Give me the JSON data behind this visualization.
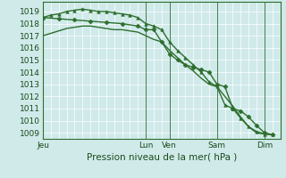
{
  "xlabel": "Pression niveau de la mer( hPa )",
  "bg_color": "#d0eaea",
  "grid_color": "#b8dada",
  "line_color": "#2d6e2d",
  "marker_color": "#2d6e2d",
  "ylim": [
    1008.5,
    1019.8
  ],
  "yticks": [
    1009,
    1010,
    1011,
    1012,
    1013,
    1014,
    1015,
    1016,
    1017,
    1018,
    1019
  ],
  "day_labels": [
    "Jeu",
    "Lun",
    "Ven",
    "Sam",
    "Dim"
  ],
  "day_positions": [
    0,
    13,
    16,
    22,
    28
  ],
  "xlim": [
    0,
    30
  ],
  "series": [
    {
      "x": [
        0,
        1,
        2,
        3,
        4,
        5,
        6,
        7,
        8,
        9,
        10,
        11,
        12,
        13,
        14,
        15,
        16,
        17,
        18,
        19,
        20,
        21,
        22,
        23,
        24,
        25,
        26,
        27,
        28,
        29
      ],
      "y": [
        1017.0,
        1017.2,
        1017.4,
        1017.6,
        1017.7,
        1017.8,
        1017.8,
        1017.7,
        1017.6,
        1017.5,
        1017.5,
        1017.4,
        1017.3,
        1017.0,
        1016.7,
        1016.5,
        1015.8,
        1015.2,
        1014.6,
        1014.1,
        1013.5,
        1013.0,
        1012.8,
        1012.0,
        1011.2,
        1010.3,
        1009.5,
        1009.0,
        1008.9,
        1008.85
      ],
      "marker": null,
      "lw": 1.0
    },
    {
      "x": [
        0,
        1,
        2,
        3,
        4,
        5,
        6,
        7,
        8,
        9,
        10,
        11,
        12,
        13,
        14,
        15,
        16,
        17,
        18,
        19,
        20,
        21,
        22,
        23,
        24,
        25,
        26,
        27,
        28,
        29
      ],
      "y": [
        1018.5,
        1018.7,
        1018.8,
        1019.0,
        1019.1,
        1019.2,
        1019.1,
        1019.0,
        1019.0,
        1018.9,
        1018.8,
        1018.7,
        1018.5,
        1018.0,
        1017.8,
        1017.5,
        1016.5,
        1015.8,
        1015.2,
        1014.6,
        1014.0,
        1013.2,
        1012.8,
        1011.3,
        1011.0,
        1010.2,
        1009.5,
        1009.1,
        1008.9,
        1008.85
      ],
      "marker": "^",
      "lw": 1.0
    },
    {
      "x": [
        0,
        2,
        4,
        6,
        8,
        10,
        12,
        13,
        14,
        15,
        16,
        17,
        18,
        19,
        20,
        21,
        22,
        23,
        24,
        25,
        26,
        27,
        28,
        29
      ],
      "y": [
        1018.5,
        1018.4,
        1018.3,
        1018.2,
        1018.1,
        1018.0,
        1017.8,
        1017.5,
        1017.5,
        1016.5,
        1015.5,
        1015.0,
        1014.6,
        1014.4,
        1014.2,
        1014.0,
        1013.0,
        1012.8,
        1011.0,
        1010.8,
        1010.3,
        1009.6,
        1009.0,
        1008.85
      ],
      "marker": "D",
      "lw": 1.0
    }
  ]
}
